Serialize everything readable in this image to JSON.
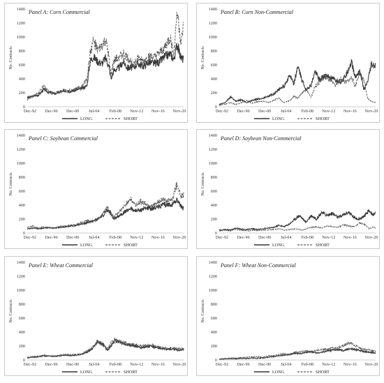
{
  "chart_data": [
    {
      "type": "line",
      "title": "Panel A: Corn Commercial",
      "ylabel": "No. Contracts",
      "ylim": [
        0,
        1400
      ],
      "yticks": [
        0,
        200,
        400,
        600,
        800,
        1000,
        1200,
        1400
      ],
      "xticks": [
        "Dec-92",
        "Dec-96",
        "Dec-00",
        "Jul-04",
        "Feb-08",
        "Nov-12",
        "Nov-16",
        "Nov-20"
      ],
      "xrange": [
        1992.9,
        2022.0
      ],
      "legend": "bottom-center",
      "series": [
        {
          "name": "LONG",
          "style": "solid",
          "x": [
            1992.9,
            1994,
            1995,
            1996,
            1997,
            1998,
            1999,
            2000,
            2001,
            2002,
            2003,
            2004,
            2004.6,
            2005.2,
            2006,
            2006.8,
            2007.5,
            2008.1,
            2008.5,
            2009,
            2010,
            2010.8,
            2011.5,
            2012.5,
            2013.5,
            2014.5,
            2015.5,
            2016.5,
            2017.5,
            2018.5,
            2019.5,
            2020.2,
            2020.8,
            2021.5,
            2022.0
          ],
          "y": [
            130,
            150,
            170,
            250,
            200,
            190,
            210,
            230,
            220,
            240,
            260,
            300,
            650,
            720,
            650,
            620,
            700,
            580,
            400,
            520,
            560,
            650,
            560,
            560,
            620,
            580,
            640,
            620,
            640,
            720,
            760,
            680,
            900,
            700,
            680
          ]
        },
        {
          "name": "SHORT",
          "style": "dashed",
          "x": [
            1992.9,
            1994,
            1995,
            1996,
            1997,
            1998,
            1999,
            2000,
            2001,
            2002,
            2003,
            2004,
            2004.6,
            2005.2,
            2006,
            2006.8,
            2007.5,
            2008.1,
            2008.5,
            2009,
            2010,
            2010.8,
            2011.5,
            2012.5,
            2013.5,
            2014.5,
            2015.5,
            2016.5,
            2017.5,
            2018.5,
            2019.5,
            2020.2,
            2020.8,
            2021.5,
            2022.0
          ],
          "y": [
            100,
            160,
            200,
            300,
            220,
            190,
            220,
            250,
            230,
            260,
            280,
            400,
            760,
            950,
            800,
            870,
            950,
            700,
            450,
            650,
            720,
            760,
            700,
            620,
            700,
            640,
            720,
            700,
            760,
            850,
            980,
            760,
            1400,
            900,
            1150
          ]
        }
      ]
    },
    {
      "type": "line",
      "title": "Panel B: Corn Non-Commercial",
      "ylabel": "No. Contracts",
      "ylim": [
        0,
        1400
      ],
      "yticks": [
        0,
        200,
        400,
        600,
        800,
        1000,
        1200,
        1400
      ],
      "xticks": [
        "Dec-92",
        "Dec-96",
        "Dec-00",
        "Jul-04",
        "Feb-08",
        "Nov-12",
        "Nov-16",
        "Nov-20"
      ],
      "xrange": [
        1992.9,
        2022.0
      ],
      "legend": "bottom-center",
      "series": [
        {
          "name": "LONG",
          "style": "solid",
          "x": [
            1992.9,
            1994,
            1995,
            1996,
            1997,
            1998,
            1999,
            2000,
            2001,
            2002,
            2003,
            2004,
            2005,
            2006,
            2006.8,
            2007.5,
            2008.2,
            2009,
            2010,
            2010.8,
            2011.5,
            2012.5,
            2013.5,
            2014.5,
            2015.5,
            2016.5,
            2017.5,
            2018.2,
            2019,
            2019.8,
            2020.5,
            2021.2,
            2022.0
          ],
          "y": [
            30,
            60,
            140,
            80,
            100,
            60,
            90,
            110,
            120,
            150,
            180,
            250,
            300,
            450,
            320,
            580,
            400,
            250,
            300,
            520,
            380,
            450,
            420,
            380,
            360,
            450,
            650,
            420,
            520,
            250,
            350,
            600,
            580
          ]
        },
        {
          "name": "SHORT",
          "style": "dashed",
          "x": [
            1992.9,
            1994,
            1995,
            1996,
            1997,
            1998,
            1999,
            2000,
            2001,
            2002,
            2003,
            2004,
            2005,
            2006,
            2006.8,
            2007.5,
            2008.2,
            2009,
            2010,
            2010.8,
            2011.5,
            2012.5,
            2013.5,
            2014.5,
            2015.5,
            2016.5,
            2017.5,
            2018.2,
            2019,
            2019.8,
            2020.5,
            2021.2,
            2022.0
          ],
          "y": [
            20,
            40,
            60,
            30,
            60,
            90,
            50,
            70,
            80,
            60,
            90,
            120,
            60,
            90,
            150,
            120,
            180,
            250,
            140,
            300,
            350,
            420,
            380,
            300,
            400,
            350,
            420,
            300,
            480,
            380,
            120,
            80,
            60
          ]
        }
      ]
    },
    {
      "type": "line",
      "title": "Panel C: Soybean Commercial",
      "ylabel": "No. Contracts",
      "ylim": [
        0,
        1400
      ],
      "yticks": [
        0,
        200,
        400,
        600,
        800,
        1000,
        1200,
        1400
      ],
      "xticks": [
        "Dec-92",
        "Dec-96",
        "Dec-00",
        "Jul-04",
        "Feb-08",
        "Nov-12",
        "Nov-16",
        "Nov-20"
      ],
      "xrange": [
        1992.9,
        2022.0
      ],
      "legend": "bottom-center",
      "series": [
        {
          "name": "LONG",
          "style": "solid",
          "x": [
            1992.9,
            1994,
            1995,
            1996,
            1997,
            1998,
            1999,
            2000,
            2001,
            2002,
            2003,
            2004,
            2005,
            2006,
            2007,
            2007.8,
            2008.5,
            2009,
            2010,
            2011,
            2012,
            2013,
            2014,
            2015,
            2016,
            2017,
            2018,
            2019,
            2020,
            2020.8,
            2021.5,
            2022.0
          ],
          "y": [
            60,
            70,
            60,
            70,
            75,
            70,
            80,
            90,
            100,
            110,
            130,
            150,
            170,
            200,
            250,
            330,
            280,
            200,
            250,
            300,
            350,
            320,
            330,
            360,
            350,
            370,
            400,
            400,
            420,
            480,
            380,
            350
          ]
        },
        {
          "name": "SHORT",
          "style": "dashed",
          "x": [
            1992.9,
            1994,
            1995,
            1996,
            1997,
            1998,
            1999,
            2000,
            2001,
            2002,
            2003,
            2004,
            2005,
            2006,
            2007,
            2007.8,
            2008.5,
            2009,
            2010,
            2011,
            2012,
            2013,
            2014,
            2015,
            2016,
            2017,
            2018,
            2019,
            2020,
            2020.8,
            2021.5,
            2022.0
          ],
          "y": [
            80,
            100,
            70,
            90,
            80,
            75,
            95,
            100,
            110,
            120,
            150,
            180,
            160,
            190,
            280,
            380,
            260,
            240,
            300,
            380,
            500,
            400,
            450,
            420,
            380,
            420,
            480,
            450,
            500,
            720,
            520,
            560
          ]
        }
      ]
    },
    {
      "type": "line",
      "title": "Panel D: Soybean Non-Commercial",
      "ylabel": "No. Contracts",
      "ylim": [
        0,
        1400
      ],
      "yticks": [
        0,
        200,
        400,
        600,
        800,
        1000,
        1200,
        1400
      ],
      "xticks": [
        "Dec-92",
        "Dec-96",
        "Dec-00",
        "Jul-04",
        "Feb-08",
        "Nov-12",
        "Nov-16",
        "Nov-20"
      ],
      "xrange": [
        1992.9,
        2022.0
      ],
      "legend": "bottom-center",
      "series": [
        {
          "name": "LONG",
          "style": "solid",
          "x": [
            1992.9,
            1994,
            1995,
            1996,
            1997,
            1998,
            1999,
            2000,
            2001,
            2002,
            2003,
            2004,
            2005,
            2006,
            2007,
            2007.8,
            2008.5,
            2009,
            2010,
            2011,
            2012,
            2013,
            2014,
            2015,
            2016,
            2017,
            2018,
            2019,
            2020,
            2020.8,
            2021.5,
            2022.0
          ],
          "y": [
            40,
            50,
            45,
            70,
            55,
            50,
            60,
            50,
            60,
            70,
            80,
            110,
            90,
            130,
            200,
            250,
            200,
            150,
            250,
            200,
            300,
            250,
            280,
            220,
            260,
            300,
            220,
            200,
            250,
            320,
            260,
            280
          ]
        },
        {
          "name": "SHORT",
          "style": "dashed",
          "x": [
            1992.9,
            1994,
            1995,
            1996,
            1997,
            1998,
            1999,
            2000,
            2001,
            2002,
            2003,
            2004,
            2005,
            2006,
            2007,
            2007.8,
            2008.5,
            2009,
            2010,
            2011,
            2012,
            2013,
            2014,
            2015,
            2016,
            2017,
            2018,
            2019,
            2020,
            2020.8,
            2021.5,
            2022.0
          ],
          "y": [
            30,
            40,
            30,
            50,
            40,
            30,
            40,
            35,
            40,
            45,
            50,
            60,
            40,
            50,
            60,
            50,
            40,
            60,
            80,
            90,
            70,
            100,
            90,
            80,
            120,
            100,
            90,
            140,
            120,
            60,
            90,
            70
          ]
        }
      ]
    },
    {
      "type": "line",
      "title": "Panel E: Wheat Commercial",
      "ylabel": "No. Contracts",
      "ylim": [
        0,
        1400
      ],
      "yticks": [
        0,
        200,
        400,
        600,
        800,
        1000,
        1200,
        1400
      ],
      "xticks": [
        "Dec-92",
        "Dec-96",
        "Dec-00",
        "Jul-04",
        "Feb-08",
        "Nov-12",
        "Nov-16",
        "Nov-20"
      ],
      "xrange": [
        1992.9,
        2022.0
      ],
      "legend": "bottom-center",
      "series": [
        {
          "name": "LONG",
          "style": "solid",
          "x": [
            1992.9,
            1994,
            1995,
            1996,
            1997,
            1998,
            1999,
            2000,
            2001,
            2002,
            2003,
            2004,
            2005,
            2006,
            2006.5,
            2007,
            2007.8,
            2008.5,
            2009.2,
            2010,
            2011,
            2012,
            2013,
            2014,
            2015,
            2016,
            2017,
            2018,
            2019,
            2020,
            2021,
            2022.0
          ],
          "y": [
            30,
            40,
            45,
            60,
            55,
            50,
            60,
            70,
            60,
            70,
            80,
            110,
            160,
            270,
            240,
            220,
            140,
            200,
            280,
            260,
            230,
            210,
            200,
            180,
            190,
            200,
            170,
            160,
            150,
            160,
            140,
            150
          ]
        },
        {
          "name": "SHORT",
          "style": "dashed",
          "x": [
            1992.9,
            1994,
            1995,
            1996,
            1997,
            1998,
            1999,
            2000,
            2001,
            2002,
            2003,
            2004,
            2005,
            2006,
            2006.5,
            2007,
            2007.8,
            2008.5,
            2009.2,
            2010,
            2011,
            2012,
            2013,
            2014,
            2015,
            2016,
            2017,
            2018,
            2019,
            2020,
            2021,
            2022.0
          ],
          "y": [
            40,
            50,
            55,
            70,
            60,
            60,
            70,
            80,
            75,
            80,
            90,
            130,
            180,
            250,
            260,
            230,
            160,
            240,
            300,
            270,
            250,
            230,
            220,
            200,
            210,
            220,
            190,
            180,
            170,
            170,
            160,
            160
          ]
        }
      ]
    },
    {
      "type": "line",
      "title": "Panel F: Wheat Non-Commercial",
      "ylabel": "No. Contracts",
      "ylim": [
        0,
        1400
      ],
      "yticks": [
        0,
        200,
        400,
        600,
        800,
        1000,
        1200,
        1400
      ],
      "xticks": [
        "Dec-92",
        "Dec-96",
        "Dec-00",
        "Jul-04",
        "Feb-08",
        "Nov-12",
        "Nov-16",
        "Nov-20"
      ],
      "xrange": [
        1992.9,
        2022.0
      ],
      "legend": "bottom-center",
      "series": [
        {
          "name": "LONG",
          "style": "solid",
          "x": [
            1992.9,
            1994,
            1995,
            1996,
            1997,
            1998,
            1999,
            2000,
            2001,
            2002,
            2003,
            2004,
            2005,
            2006,
            2007,
            2008,
            2009,
            2010,
            2011,
            2012,
            2013,
            2014,
            2015,
            2016,
            2017,
            2018,
            2019,
            2020,
            2021,
            2022.0
          ],
          "y": [
            10,
            15,
            20,
            20,
            25,
            20,
            30,
            25,
            30,
            40,
            50,
            60,
            70,
            80,
            100,
            90,
            110,
            120,
            100,
            110,
            130,
            140,
            150,
            130,
            160,
            150,
            140,
            120,
            110,
            100
          ]
        },
        {
          "name": "SHORT",
          "style": "dashed",
          "x": [
            1992.9,
            1994,
            1995,
            1996,
            1997,
            1998,
            1999,
            2000,
            2001,
            2002,
            2003,
            2004,
            2005,
            2006,
            2007,
            2008,
            2009,
            2010,
            2011,
            2012,
            2013,
            2014,
            2015,
            2016,
            2017,
            2018,
            2019,
            2020,
            2021,
            2022.0
          ],
          "y": [
            10,
            20,
            30,
            25,
            35,
            40,
            45,
            50,
            40,
            60,
            60,
            80,
            90,
            70,
            110,
            120,
            130,
            120,
            140,
            150,
            160,
            170,
            180,
            200,
            250,
            220,
            180,
            150,
            140,
            120
          ]
        }
      ]
    }
  ]
}
